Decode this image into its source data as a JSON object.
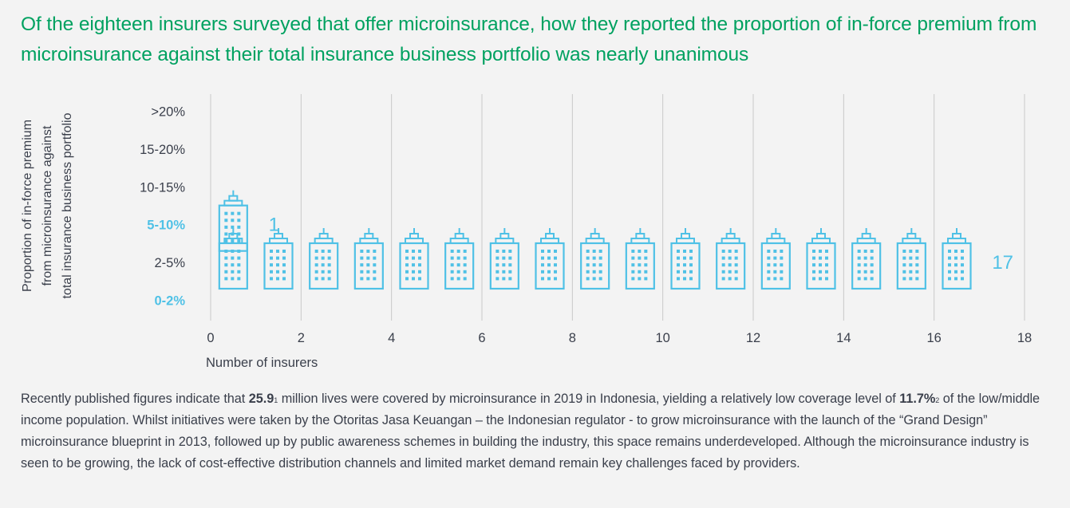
{
  "title": "Of the eighteen insurers surveyed that offer microinsurance, how they reported the proportion of in-force premium from microinsurance against their total insurance business portfolio was nearly unanimous",
  "colors": {
    "title": "#00a160",
    "accent": "#4fc1e6",
    "text": "#3a3f4b",
    "grid": "#c8c8c8"
  },
  "chart_data": {
    "type": "pictograph",
    "title": "Of the eighteen insurers surveyed that offer microinsurance, how they reported the proportion of in-force premium from microinsurance against their total insurance business portfolio was nearly unanimous",
    "xlabel": "Number of insurers",
    "ylabel_lines": [
      "Proportion of in-force premium",
      "from microinsurance against",
      "total insurance business portfolio"
    ],
    "ylabel": "Proportion of in-force premium from microinsurance against total insurance business portfolio",
    "categories": [
      ">20%",
      "15-20%",
      "10-15%",
      "5-10%",
      "2-5%",
      "0-2%"
    ],
    "highlighted_categories": [
      "5-10%",
      "0-2%"
    ],
    "values": [
      0,
      0,
      0,
      1,
      17,
      0
    ],
    "icon": "building-icon",
    "xlim": [
      0,
      18
    ],
    "xticks": [
      "0",
      "2",
      "4",
      "6",
      "8",
      "10",
      "12",
      "14",
      "16",
      "18"
    ],
    "grid": true,
    "data_labels": [
      {
        "category": "5-10%",
        "label": "1"
      },
      {
        "category": "2-5%",
        "label": "17"
      }
    ]
  },
  "body": {
    "p1_a": "Recently published figures indicate that ",
    "p1_bold1": "25.9",
    "p1_sup1": "1",
    "p1_b": " million lives were covered by microinsurance in 2019 in Indonesia, yielding a relatively low coverage level of ",
    "p1_bold2": "11.7%",
    "p1_sup2": "2",
    "p1_c": " of the low/middle income population. Whilst initiatives were taken by the Otoritas Jasa Keuangan – the Indonesian regulator - to grow microinsurance with the launch of  the “Grand Design” microinsurance blueprint in 2013, followed up by public awareness schemes in building the industry, this space remains underdeveloped. Although the microinsurance industry is seen to be growing, the lack of cost-effective distribution channels and limited market  demand remain key challenges faced by providers."
  }
}
